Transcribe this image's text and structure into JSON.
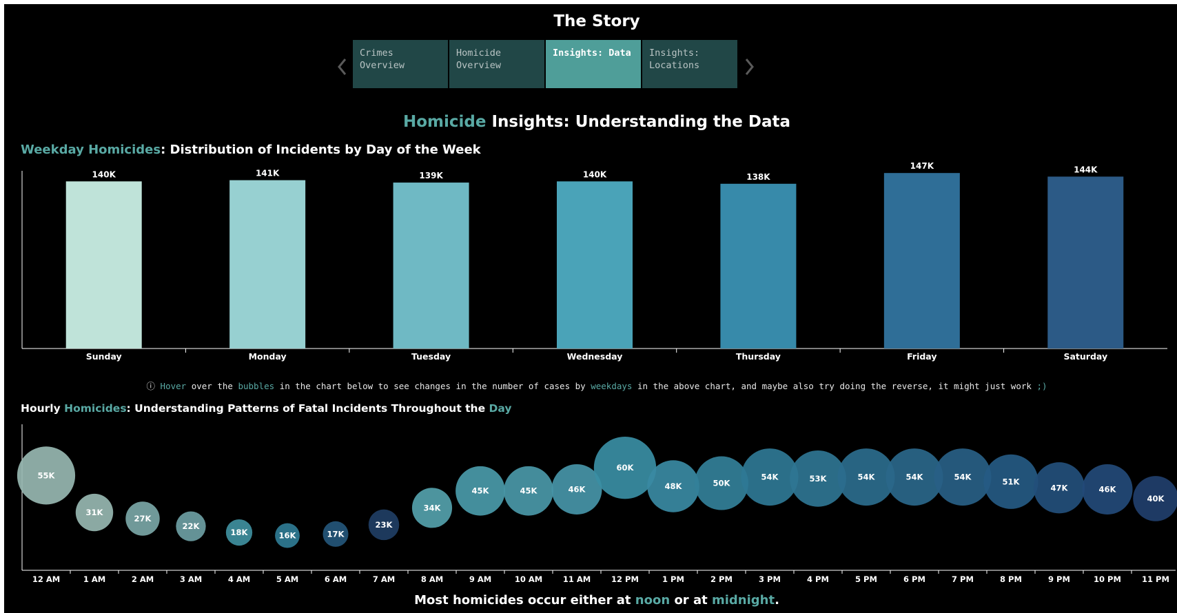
{
  "story": {
    "title": "The Story",
    "tabs": [
      {
        "label": "Crimes Overview",
        "active": false
      },
      {
        "label": "Homicide Overview",
        "active": false
      },
      {
        "label": "Insights: Data",
        "active": true
      },
      {
        "label": "Insights: Locations",
        "active": false
      }
    ]
  },
  "main": {
    "title_accent": "Homicide",
    "title_rest": " Insights: Understanding the Data"
  },
  "weekday": {
    "title_accent": "Weekday Homicides",
    "title_rest": ": Distribution of Incidents by Day of the Week"
  },
  "hint": {
    "icon": "ⓘ",
    "p1": " over the ",
    "w1": "Hover",
    "w2": "bubbles",
    "p2": " in the chart below to see changes in the number of cases by ",
    "w3": "weekdays",
    "p3": " in the above chart, and maybe also try doing the reverse, it might just work ",
    "w4": ";)"
  },
  "hourly": {
    "t1": "Hourly ",
    "t2": "Homicides",
    "t3": ": Understanding Patterns of Fatal Incidents Throughout the ",
    "t4": "Day"
  },
  "footer": {
    "p1": "Most homicides occur either at ",
    "w1": "noon",
    "p2": " or at ",
    "w2": "midnight",
    "p3": "."
  },
  "colors": {
    "accent": "#59a9a4",
    "tab_bg": "#214747",
    "tab_active_bg": "#4f9e99",
    "weekday_bars": [
      "#bfe3d9",
      "#97d0d1",
      "#6fb9c4",
      "#4aa3b8",
      "#378aaa",
      "#2f6e97",
      "#2c5a86"
    ]
  },
  "chart_data": [
    {
      "type": "bar",
      "categories": [
        "Sunday",
        "Monday",
        "Tuesday",
        "Wednesday",
        "Thursday",
        "Friday",
        "Saturday"
      ],
      "values": [
        140,
        141,
        139,
        140,
        138,
        147,
        144
      ],
      "labels": [
        "140K",
        "141K",
        "139K",
        "140K",
        "138K",
        "147K",
        "144K"
      ],
      "ylim": [
        0,
        150
      ]
    },
    {
      "type": "scatter",
      "categories": [
        "12 AM",
        "1 AM",
        "2 AM",
        "3 AM",
        "4 AM",
        "5 AM",
        "6 AM",
        "7 AM",
        "8 AM",
        "9 AM",
        "10 AM",
        "11 AM",
        "12 PM",
        "1 PM",
        "2 PM",
        "3 PM",
        "4 PM",
        "5 PM",
        "6 PM",
        "7 PM",
        "8 PM",
        "9 PM",
        "10 PM",
        "11 PM"
      ],
      "values": [
        55,
        31,
        27,
        22,
        18,
        16,
        17,
        23,
        34,
        45,
        45,
        46,
        60,
        48,
        50,
        54,
        53,
        54,
        54,
        54,
        51,
        47,
        46,
        40
      ],
      "labels": [
        "55K",
        "31K",
        "27K",
        "22K",
        "18K",
        "16K",
        "17K",
        "23K",
        "34K",
        "45K",
        "45K",
        "46K",
        "60K",
        "48K",
        "50K",
        "54K",
        "53K",
        "54K",
        "54K",
        "54K",
        "51K",
        "47K",
        "46K",
        "40K"
      ],
      "ylim": [
        10,
        65
      ],
      "bubble_colors": [
        "#97b7b1",
        "#97b7b1",
        "#7aa6a6",
        "#6d9ea3",
        "#3f8f9e",
        "#2f7b94",
        "#24567a",
        "#1f3e64",
        "#54a1ab",
        "#4a9aa9",
        "#4a98a8",
        "#4795a8",
        "#3a8ea4",
        "#3a8aa3",
        "#338099",
        "#2f7895",
        "#2f7592",
        "#2b6d8d",
        "#2a678a",
        "#285f85",
        "#255a83",
        "#234f7b",
        "#234a78",
        "#213f6c"
      ]
    }
  ]
}
